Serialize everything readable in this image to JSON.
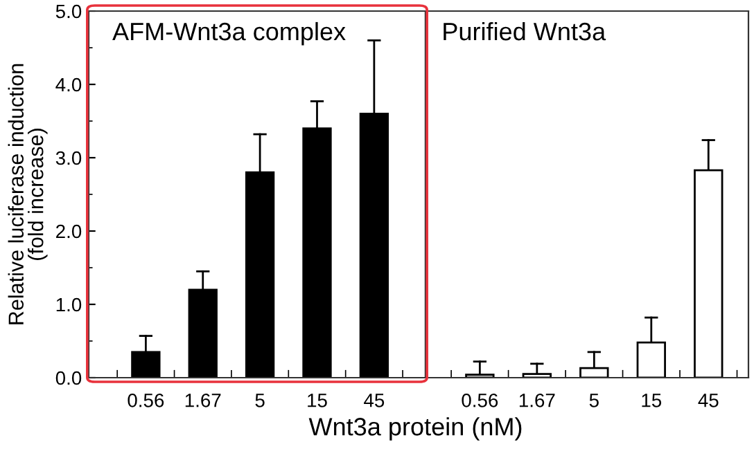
{
  "chart_data": [
    {
      "type": "bar",
      "title": "AFM-Wnt3a complex",
      "ylabel": "Relative luciferase induction\n(fold increase)",
      "xlabel": "Wnt3a protein (nM)",
      "categories": [
        "0.56",
        "1.67",
        "5",
        "15",
        "45"
      ],
      "series": [
        {
          "color": "#000000",
          "values": [
            0.35,
            1.2,
            2.8,
            3.4,
            3.6
          ],
          "errors": [
            [
              0.35,
              0.57
            ],
            [
              1.2,
              1.45
            ],
            [
              2.8,
              3.32
            ],
            [
              3.4,
              3.77
            ],
            [
              3.6,
              4.6
            ]
          ]
        }
      ],
      "ylim": [
        0,
        5
      ],
      "yticks": [
        {
          "value": 0,
          "label": "0.0"
        },
        {
          "value": 1,
          "label": "1.0"
        },
        {
          "value": 2,
          "label": "2.0"
        },
        {
          "value": 3,
          "label": "3.0"
        },
        {
          "value": 4,
          "label": "4.0"
        },
        {
          "value": 5,
          "label": "5.0"
        }
      ],
      "grid": false,
      "legend": false
    },
    {
      "type": "bar",
      "title": "Purified Wnt3a",
      "categories": [
        "0.56",
        "1.67",
        "5",
        "15",
        "45"
      ],
      "series": [
        {
          "color": "#ffffff",
          "values": [
            0.04,
            0.05,
            0.13,
            0.48,
            2.83
          ],
          "errors": [
            [
              0.04,
              0.22
            ],
            [
              0.05,
              0.19
            ],
            [
              0.13,
              0.35
            ],
            [
              0.48,
              0.82
            ],
            [
              2.83,
              3.24
            ]
          ]
        }
      ],
      "ylim": [
        0,
        5
      ],
      "tick_labels": "x",
      "grid": false,
      "legend": false
    }
  ]
}
